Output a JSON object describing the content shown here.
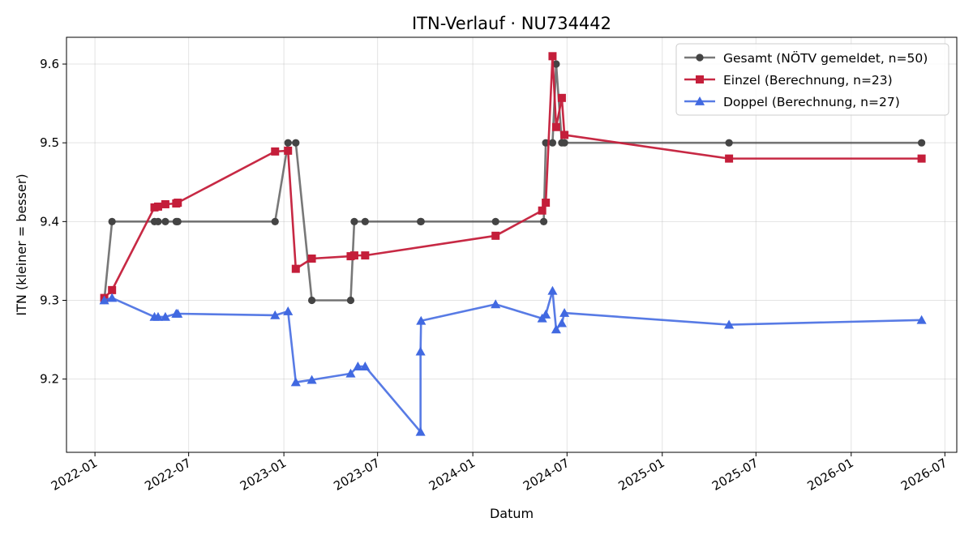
{
  "chart_data": {
    "type": "line",
    "title": "ITN-Verlauf · NU734442",
    "xlabel": "Datum",
    "ylabel": "ITN  (kleiner = besser)",
    "x_type": "date",
    "xlim": [
      "2021-11-07",
      "2026-07-24"
    ],
    "ylim": [
      9.107,
      9.634
    ],
    "x_ticks": [
      "2022-01-01",
      "2022-07-01",
      "2023-01-01",
      "2023-07-01",
      "2024-01-01",
      "2024-07-01",
      "2025-01-01",
      "2025-07-01",
      "2026-01-01",
      "2026-07-01"
    ],
    "x_tick_labels": [
      "2022-01",
      "2022-07",
      "2023-01",
      "2023-07",
      "2024-01",
      "2024-07",
      "2025-01",
      "2025-07",
      "2026-01",
      "2026-07"
    ],
    "y_ticks": [
      9.2,
      9.3,
      9.4,
      9.5,
      9.6
    ],
    "y_tick_labels": [
      "9.2",
      "9.3",
      "9.4",
      "9.5",
      "9.6"
    ],
    "grid": true,
    "legend_position": "top-right",
    "series": [
      {
        "name": "Gesamt (NÖTV gemeldet, n=50)",
        "color": "#444444",
        "line_opacity": 0.72,
        "marker": "circle",
        "points": [
          [
            "2022-01-19",
            9.3
          ],
          [
            "2022-02-03",
            9.4
          ],
          [
            "2022-04-26",
            9.4
          ],
          [
            "2022-05-03",
            9.4
          ],
          [
            "2022-05-17",
            9.4
          ],
          [
            "2022-06-07",
            9.4
          ],
          [
            "2022-06-10",
            9.4
          ],
          [
            "2022-12-15",
            9.4
          ],
          [
            "2023-01-09",
            9.5
          ],
          [
            "2023-01-24",
            9.5
          ],
          [
            "2023-02-24",
            9.3
          ],
          [
            "2023-05-10",
            9.3
          ],
          [
            "2023-05-17",
            9.4
          ],
          [
            "2023-06-07",
            9.4
          ],
          [
            "2023-09-22",
            9.4
          ],
          [
            "2023-09-23",
            9.4
          ],
          [
            "2024-02-14",
            9.4
          ],
          [
            "2024-05-17",
            9.4
          ],
          [
            "2024-05-21",
            9.5
          ],
          [
            "2024-06-03",
            9.5
          ],
          [
            "2024-06-10",
            9.6
          ],
          [
            "2024-06-21",
            9.5
          ],
          [
            "2024-06-26",
            9.5
          ],
          [
            "2025-05-10",
            9.5
          ],
          [
            "2026-05-17",
            9.5
          ]
        ]
      },
      {
        "name": "Einzel (Berechnung, n=23)",
        "color": "#c41e3a",
        "line_opacity": 0.95,
        "marker": "square",
        "points": [
          [
            "2022-01-19",
            9.303
          ],
          [
            "2022-02-03",
            9.313
          ],
          [
            "2022-04-26",
            9.418
          ],
          [
            "2022-05-03",
            9.419
          ],
          [
            "2022-05-17",
            9.422
          ],
          [
            "2022-06-07",
            9.423
          ],
          [
            "2022-06-10",
            9.424
          ],
          [
            "2022-12-15",
            9.489
          ],
          [
            "2023-01-09",
            9.49
          ],
          [
            "2023-01-24",
            9.34
          ],
          [
            "2023-02-24",
            9.353
          ],
          [
            "2023-05-10",
            9.356
          ],
          [
            "2023-05-17",
            9.357
          ],
          [
            "2023-06-07",
            9.357
          ],
          [
            "2024-02-14",
            9.382
          ],
          [
            "2024-05-14",
            9.414
          ],
          [
            "2024-05-21",
            9.424
          ],
          [
            "2024-06-03",
            9.61
          ],
          [
            "2024-06-10",
            9.52
          ],
          [
            "2024-06-21",
            9.557
          ],
          [
            "2024-06-26",
            9.51
          ],
          [
            "2025-05-10",
            9.48
          ],
          [
            "2026-05-17",
            9.48
          ]
        ]
      },
      {
        "name": "Doppel (Berechnung, n=27)",
        "color": "#4169e1",
        "line_opacity": 0.88,
        "marker": "triangle",
        "points": [
          [
            "2022-01-19",
            9.3
          ],
          [
            "2022-02-03",
            9.303
          ],
          [
            "2022-04-26",
            9.279
          ],
          [
            "2022-05-03",
            9.279
          ],
          [
            "2022-05-17",
            9.279
          ],
          [
            "2022-06-07",
            9.283
          ],
          [
            "2022-06-10",
            9.283
          ],
          [
            "2022-12-15",
            9.281
          ],
          [
            "2023-01-09",
            9.286
          ],
          [
            "2023-01-24",
            9.196
          ],
          [
            "2023-02-24",
            9.199
          ],
          [
            "2023-05-10",
            9.207
          ],
          [
            "2023-05-24",
            9.216
          ],
          [
            "2023-06-07",
            9.216
          ],
          [
            "2023-09-22",
            9.133
          ],
          [
            "2023-09-22",
            9.235
          ],
          [
            "2023-09-23",
            9.274
          ],
          [
            "2024-02-14",
            9.295
          ],
          [
            "2024-05-14",
            9.277
          ],
          [
            "2024-05-21",
            9.282
          ],
          [
            "2024-06-03",
            9.312
          ],
          [
            "2024-06-10",
            9.263
          ],
          [
            "2024-06-21",
            9.271
          ],
          [
            "2024-06-26",
            9.284
          ],
          [
            "2025-05-10",
            9.269
          ],
          [
            "2026-05-17",
            9.275
          ]
        ]
      }
    ]
  }
}
